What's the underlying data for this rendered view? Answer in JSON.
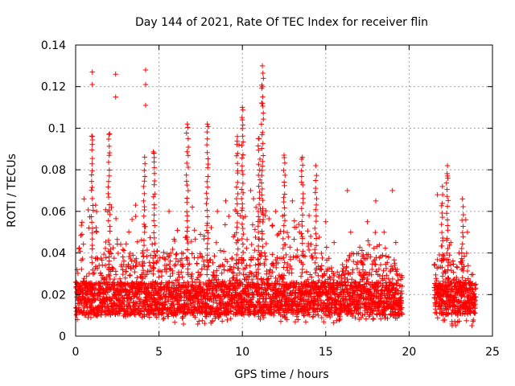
{
  "chart_data": {
    "type": "scatter",
    "title": "Day 144 of 2021, Rate Of TEC Index for receiver flin",
    "xlabel": "GPS time / hours",
    "ylabel": "ROTI / TECUs",
    "xlim": [
      0,
      25
    ],
    "ylim": [
      0,
      0.14
    ],
    "xticks": [
      0,
      5,
      10,
      15,
      20,
      25
    ],
    "yticks": [
      0,
      0.02,
      0.04,
      0.06,
      0.08,
      0.1,
      0.12,
      0.14
    ],
    "xtick_labels": [
      "0",
      "5",
      "10",
      "15",
      "20",
      "25"
    ],
    "ytick_labels": [
      "0",
      "0.02",
      "0.04",
      "0.06",
      "0.08",
      "0.1",
      "0.12",
      "0.14"
    ],
    "grid": true,
    "marker": "+",
    "color": "#ff0000",
    "data_gaps_hours": [
      [
        19.6,
        21.5
      ]
    ],
    "series": [
      {
        "name": "ROTI",
        "points": [
          [
            1.0,
            0.127
          ],
          [
            1.0,
            0.121
          ],
          [
            2.4,
            0.126
          ],
          [
            2.4,
            0.115
          ],
          [
            4.2,
            0.128
          ],
          [
            4.2,
            0.121
          ],
          [
            4.2,
            0.111
          ],
          [
            11.2,
            0.13
          ],
          [
            11.2,
            0.12
          ],
          [
            11.2,
            0.112
          ],
          [
            10.0,
            0.11
          ],
          [
            10.0,
            0.104
          ],
          [
            6.7,
            0.102
          ],
          [
            7.9,
            0.102
          ],
          [
            9.7,
            0.096
          ],
          [
            9.8,
            0.092
          ],
          [
            4.7,
            0.088
          ],
          [
            2.0,
            0.097
          ],
          [
            1.0,
            0.096
          ],
          [
            11.0,
            0.095
          ],
          [
            12.5,
            0.087
          ],
          [
            13.6,
            0.086
          ],
          [
            14.4,
            0.082
          ],
          [
            22.3,
            0.082
          ],
          [
            22.3,
            0.077
          ],
          [
            22.0,
            0.072
          ],
          [
            21.7,
            0.068
          ],
          [
            19.0,
            0.07
          ],
          [
            16.3,
            0.07
          ],
          [
            18.0,
            0.065
          ],
          [
            23.2,
            0.066
          ],
          [
            23.4,
            0.056
          ],
          [
            23.5,
            0.05
          ],
          [
            0.5,
            0.066
          ],
          [
            1.2,
            0.063
          ],
          [
            3.6,
            0.063
          ],
          [
            5.6,
            0.06
          ],
          [
            7.0,
            0.062
          ],
          [
            8.5,
            0.06
          ],
          [
            9.0,
            0.065
          ],
          [
            10.5,
            0.07
          ],
          [
            12.0,
            0.06
          ],
          [
            13.0,
            0.065
          ],
          [
            14.0,
            0.058
          ],
          [
            15.0,
            0.055
          ],
          [
            15.5,
            0.045
          ],
          [
            16.5,
            0.05
          ],
          [
            17.5,
            0.055
          ],
          [
            18.5,
            0.05
          ],
          [
            19.2,
            0.045
          ],
          [
            22.5,
            0.045
          ],
          [
            23.0,
            0.04
          ],
          [
            0.2,
            0.042
          ],
          [
            0.3,
            0.012
          ],
          [
            0.1,
            0.008
          ]
        ],
        "envelope_upper": [
          [
            0.0,
            0.04
          ],
          [
            0.5,
            0.06
          ],
          [
            1.0,
            0.07
          ],
          [
            1.5,
            0.06
          ],
          [
            2.0,
            0.07
          ],
          [
            2.5,
            0.055
          ],
          [
            3.0,
            0.045
          ],
          [
            3.5,
            0.06
          ],
          [
            4.0,
            0.065
          ],
          [
            4.5,
            0.055
          ],
          [
            5.0,
            0.045
          ],
          [
            5.5,
            0.055
          ],
          [
            6.0,
            0.05
          ],
          [
            6.5,
            0.06
          ],
          [
            7.0,
            0.055
          ],
          [
            7.5,
            0.05
          ],
          [
            8.0,
            0.06
          ],
          [
            8.5,
            0.055
          ],
          [
            9.0,
            0.06
          ],
          [
            9.5,
            0.065
          ],
          [
            10.0,
            0.07
          ],
          [
            10.5,
            0.065
          ],
          [
            11.0,
            0.07
          ],
          [
            11.5,
            0.06
          ],
          [
            12.0,
            0.055
          ],
          [
            12.5,
            0.06
          ],
          [
            13.0,
            0.06
          ],
          [
            13.5,
            0.055
          ],
          [
            14.0,
            0.05
          ],
          [
            14.5,
            0.05
          ],
          [
            15.0,
            0.045
          ],
          [
            15.5,
            0.03
          ],
          [
            16.0,
            0.035
          ],
          [
            16.5,
            0.04
          ],
          [
            17.0,
            0.045
          ],
          [
            17.5,
            0.05
          ],
          [
            18.0,
            0.055
          ],
          [
            18.5,
            0.045
          ],
          [
            19.0,
            0.04
          ],
          [
            19.5,
            0.03
          ],
          [
            21.5,
            0.035
          ],
          [
            22.0,
            0.045
          ],
          [
            22.5,
            0.045
          ],
          [
            23.0,
            0.04
          ],
          [
            23.5,
            0.04
          ],
          [
            24.0,
            0.03
          ]
        ],
        "envelope_lower": [
          [
            0.0,
            0.008
          ],
          [
            2.0,
            0.01
          ],
          [
            5.0,
            0.008
          ],
          [
            7.0,
            0.005
          ],
          [
            10.0,
            0.008
          ],
          [
            15.0,
            0.005
          ],
          [
            16.0,
            0.008
          ],
          [
            19.5,
            0.008
          ],
          [
            21.5,
            0.008
          ],
          [
            22.5,
            0.005
          ],
          [
            24.0,
            0.005
          ]
        ]
      }
    ]
  }
}
